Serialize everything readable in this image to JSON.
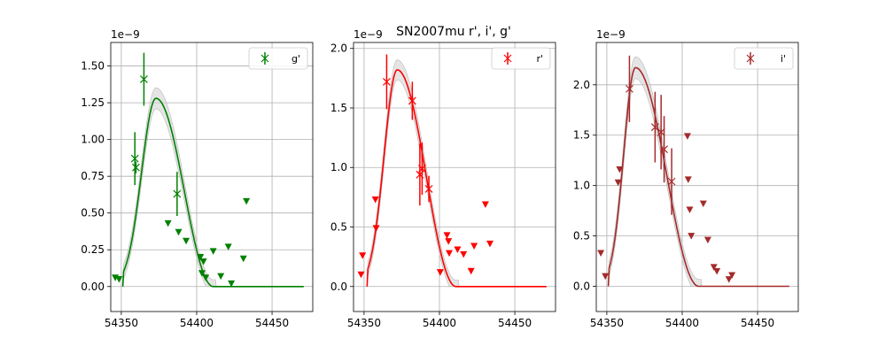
{
  "figure": {
    "title": "SN2007mu  r', i', g'"
  },
  "chart_data": [
    {
      "type": "scatter",
      "band": "g'",
      "color": "#008000",
      "offset_label": "1e−9",
      "xlim": [
        54343,
        54477
      ],
      "ylim": [
        -0.17,
        1.66
      ],
      "xticks": [
        54350,
        54400,
        54450
      ],
      "xtick_labels": [
        "54350",
        "54400",
        "54450"
      ],
      "yticks": [
        0.0,
        0.25,
        0.5,
        0.75,
        1.0,
        1.25,
        1.5
      ],
      "ytick_labels": [
        "0.00",
        "0.25",
        "0.50",
        "0.75",
        "1.00",
        "1.25",
        "1.50"
      ],
      "legend": {
        "label": "g'",
        "position": "upper right"
      },
      "grid": true,
      "detections": [
        {
          "x": 54359,
          "y": 0.87,
          "yerr": 0.18
        },
        {
          "x": 54359.7,
          "y": 0.81,
          "yerr": 0.04
        },
        {
          "x": 54365,
          "y": 1.41,
          "yerr": 0.18
        },
        {
          "x": 54387,
          "y": 0.63,
          "yerr": 0.15
        }
      ],
      "upper_limits": [
        {
          "x": 54346,
          "y": 0.06
        },
        {
          "x": 54348.5,
          "y": 0.05
        },
        {
          "x": 54381,
          "y": 0.43
        },
        {
          "x": 54388,
          "y": 0.37
        },
        {
          "x": 54393,
          "y": 0.31
        },
        {
          "x": 54402.5,
          "y": 0.2
        },
        {
          "x": 54403.5,
          "y": 0.09
        },
        {
          "x": 54404.5,
          "y": 0.17
        },
        {
          "x": 54406,
          "y": 0.06
        },
        {
          "x": 54411,
          "y": 0.24
        },
        {
          "x": 54416,
          "y": 0.07
        },
        {
          "x": 54421,
          "y": 0.27
        },
        {
          "x": 54423,
          "y": 0.02
        },
        {
          "x": 54431,
          "y": 0.19
        },
        {
          "x": 54433,
          "y": 0.58
        }
      ],
      "model": {
        "x_start": 54351,
        "x_peak": 54373,
        "peak": 1.28,
        "x_end": 54411,
        "x_max": 54471,
        "band_halfwidth": 0.06
      }
    },
    {
      "type": "scatter",
      "band": "r'",
      "color": "#ff0000",
      "offset_label": "1e−9",
      "xlim": [
        54343,
        54477
      ],
      "ylim": [
        -0.21,
        2.05
      ],
      "xticks": [
        54350,
        54400,
        54450
      ],
      "xtick_labels": [
        "54350",
        "54400",
        "54450"
      ],
      "yticks": [
        0.0,
        0.5,
        1.0,
        1.5,
        2.0
      ],
      "ytick_labels": [
        "0.0",
        "0.5",
        "1.0",
        "1.5",
        "2.0"
      ],
      "legend": {
        "label": "r'",
        "position": "upper right"
      },
      "grid": true,
      "detections": [
        {
          "x": 54365,
          "y": 1.72,
          "yerr": 0.23
        },
        {
          "x": 54382,
          "y": 1.56,
          "yerr": 0.16
        },
        {
          "x": 54387,
          "y": 0.94,
          "yerr": 0.26
        },
        {
          "x": 54388.5,
          "y": 0.99,
          "yerr": 0.22
        },
        {
          "x": 54393,
          "y": 0.82,
          "yerr": 0.11
        }
      ],
      "upper_limits": [
        {
          "x": 54348,
          "y": 0.1
        },
        {
          "x": 54349,
          "y": 0.26
        },
        {
          "x": 54357.5,
          "y": 0.73
        },
        {
          "x": 54358,
          "y": 0.49
        },
        {
          "x": 54400.5,
          "y": 0.12
        },
        {
          "x": 54405,
          "y": 0.43
        },
        {
          "x": 54406,
          "y": 0.38
        },
        {
          "x": 54406.5,
          "y": 0.28
        },
        {
          "x": 54412,
          "y": 0.31
        },
        {
          "x": 54416,
          "y": 0.27
        },
        {
          "x": 54421,
          "y": 0.13
        },
        {
          "x": 54423,
          "y": 0.34
        },
        {
          "x": 54430.5,
          "y": 0.69
        },
        {
          "x": 54433.5,
          "y": 0.36
        }
      ],
      "model": {
        "x_start": 54352,
        "x_peak": 54372,
        "peak": 1.82,
        "x_end": 54411,
        "x_max": 54471,
        "band_halfwidth": 0.07
      }
    },
    {
      "type": "scatter",
      "band": "i'",
      "color": "#a52a2a",
      "offset_label": "1e−9",
      "xlim": [
        54343,
        54477
      ],
      "ylim": [
        -0.25,
        2.42
      ],
      "xticks": [
        54350,
        54400,
        54450
      ],
      "xtick_labels": [
        "54350",
        "54400",
        "54450"
      ],
      "yticks": [
        0.0,
        0.5,
        1.0,
        1.5,
        2.0
      ],
      "ytick_labels": [
        "0.0",
        "0.5",
        "1.0",
        "1.5",
        "2.0"
      ],
      "legend": {
        "label": "i'",
        "position": "upper right"
      },
      "grid": true,
      "detections": [
        {
          "x": 54365,
          "y": 1.96,
          "yerr": 0.33
        },
        {
          "x": 54382,
          "y": 1.58,
          "yerr": 0.35
        },
        {
          "x": 54386,
          "y": 1.53,
          "yerr": 0.37
        },
        {
          "x": 54388,
          "y": 1.36,
          "yerr": 0.33
        },
        {
          "x": 54393,
          "y": 1.04,
          "yerr": 0.33
        }
      ],
      "upper_limits": [
        {
          "x": 54346,
          "y": 0.33
        },
        {
          "x": 54349,
          "y": 0.1
        },
        {
          "x": 54357.5,
          "y": 1.03
        },
        {
          "x": 54358.5,
          "y": 1.16
        },
        {
          "x": 54403.5,
          "y": 1.49
        },
        {
          "x": 54404,
          "y": 1.06
        },
        {
          "x": 54405,
          "y": 0.76
        },
        {
          "x": 54406,
          "y": 0.5
        },
        {
          "x": 54414,
          "y": 0.82
        },
        {
          "x": 54417,
          "y": 0.46
        },
        {
          "x": 54421,
          "y": 0.19
        },
        {
          "x": 54423,
          "y": 0.15
        },
        {
          "x": 54431,
          "y": 0.07
        },
        {
          "x": 54433,
          "y": 0.11
        }
      ],
      "model": {
        "x_start": 54351,
        "x_peak": 54369,
        "peak": 2.17,
        "x_end": 54411,
        "x_max": 54471,
        "band_halfwidth": 0.09
      }
    }
  ]
}
